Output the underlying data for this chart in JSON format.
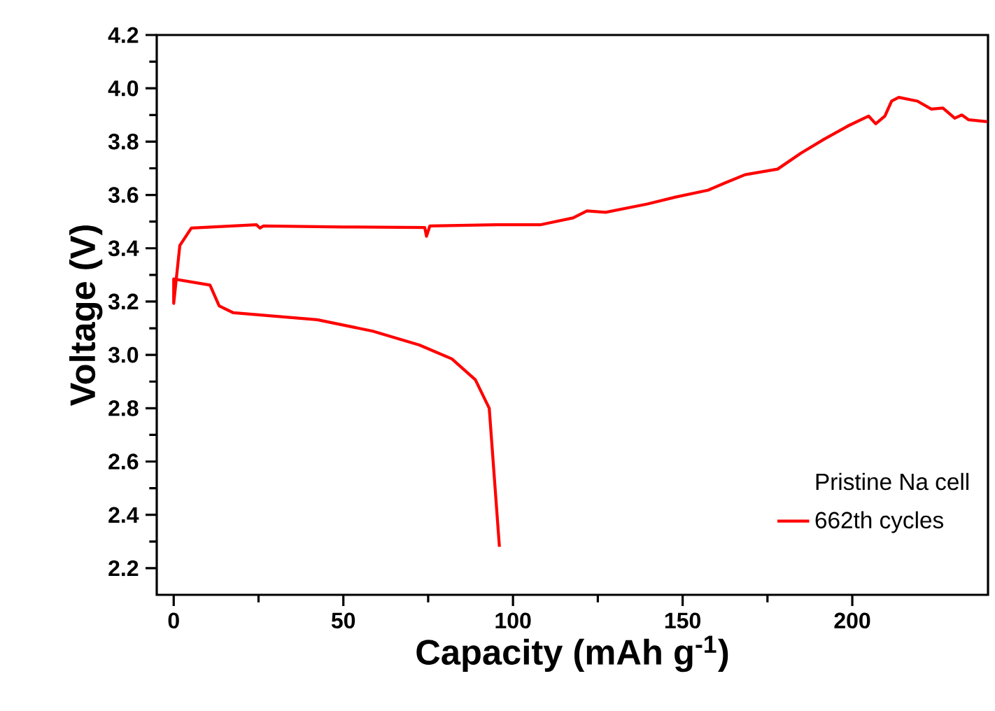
{
  "chart_data": {
    "type": "line",
    "xlabel": "Capacity (mAh g$^{-1}$)",
    "ylabel": "Voltage (V)",
    "legend_title": "Pristine Na cell",
    "legend": "bottom right",
    "grid": false,
    "marker": "none",
    "line_style": "solid",
    "xlim": [
      -5,
      240
    ],
    "ylim": [
      2.1,
      4.2
    ],
    "xticks": [
      0,
      50,
      100,
      150,
      200
    ],
    "yticks": [
      2.2,
      2.4,
      2.6,
      2.8,
      {
        "value": 3,
        "label": "3.0"
      },
      3.2,
      3.4,
      3.6,
      3.8,
      {
        "value": 4,
        "label": "4.0"
      },
      4.2
    ],
    "series": [
      {
        "name": "662th cycles",
        "color": "#ff0000",
        "x": [
          96,
          93,
          88.9,
          82,
          72.4,
          58.7,
          42.3,
          17.6,
          13.4,
          10.7,
          0,
          0,
          1.8,
          5.2,
          24.4,
          25.4,
          26.5,
          50,
          74,
          74.5,
          75.5,
          95,
          108,
          117.7,
          121.8,
          127.3,
          139.6,
          147.9,
          157.5,
          162.3,
          168.4,
          178,
          184.9,
          191.8,
          198.6,
          204.8,
          206.9,
          209.6,
          211.6,
          213.7,
          219.2,
          223.3,
          226.7,
          230.2,
          232.3,
          234.3,
          239.8
        ],
        "values": [
          2.28,
          2.8,
          2.907,
          2.985,
          3.037,
          3.089,
          3.132,
          3.158,
          3.184,
          3.262,
          3.285,
          3.193,
          3.41,
          3.476,
          3.488,
          3.476,
          3.484,
          3.48,
          3.478,
          3.445,
          3.484,
          3.488,
          3.488,
          3.514,
          3.54,
          3.535,
          3.566,
          3.592,
          3.618,
          3.644,
          3.676,
          3.697,
          3.757,
          3.81,
          3.858,
          3.896,
          3.867,
          3.896,
          3.952,
          3.966,
          3.952,
          3.922,
          3.926,
          3.888,
          3.9,
          3.882,
          3.875
        ]
      }
    ]
  }
}
